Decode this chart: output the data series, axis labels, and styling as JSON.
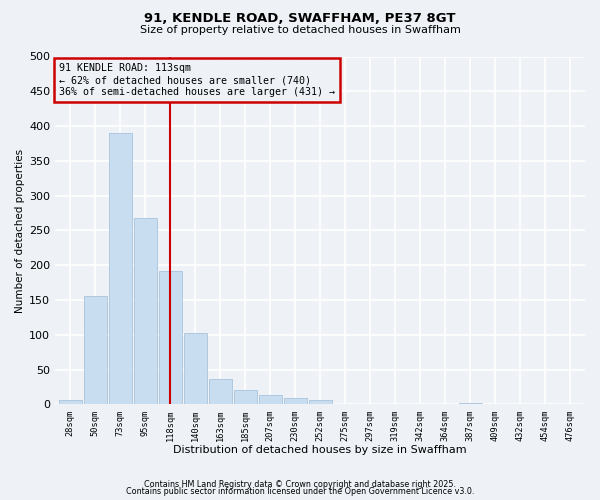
{
  "title": "91, KENDLE ROAD, SWAFFHAM, PE37 8GT",
  "subtitle": "Size of property relative to detached houses in Swaffham",
  "xlabel": "Distribution of detached houses by size in Swaffham",
  "ylabel": "Number of detached properties",
  "bar_labels": [
    "28sqm",
    "50sqm",
    "73sqm",
    "95sqm",
    "118sqm",
    "140sqm",
    "163sqm",
    "185sqm",
    "207sqm",
    "230sqm",
    "252sqm",
    "275sqm",
    "297sqm",
    "319sqm",
    "342sqm",
    "364sqm",
    "387sqm",
    "409sqm",
    "432sqm",
    "454sqm",
    "476sqm"
  ],
  "bar_values": [
    7,
    156,
    390,
    268,
    192,
    102,
    36,
    21,
    13,
    9,
    7,
    1,
    0,
    0,
    0,
    0,
    2,
    0,
    0,
    0,
    1
  ],
  "bar_color": "#c8ddef",
  "bar_edge_color": "#aac4dc",
  "ylim": [
    0,
    500
  ],
  "yticks": [
    0,
    50,
    100,
    150,
    200,
    250,
    300,
    350,
    400,
    450,
    500
  ],
  "vline_x": 4,
  "vline_color": "#cc0000",
  "annotation_title": "91 KENDLE ROAD: 113sqm",
  "annotation_line1": "← 62% of detached houses are smaller (740)",
  "annotation_line2": "36% of semi-detached houses are larger (431) →",
  "annotation_box_color": "#cc0000",
  "background_color": "#eef2f7",
  "grid_color": "#ffffff",
  "footer_line1": "Contains HM Land Registry data © Crown copyright and database right 2025.",
  "footer_line2": "Contains public sector information licensed under the Open Government Licence v3.0."
}
